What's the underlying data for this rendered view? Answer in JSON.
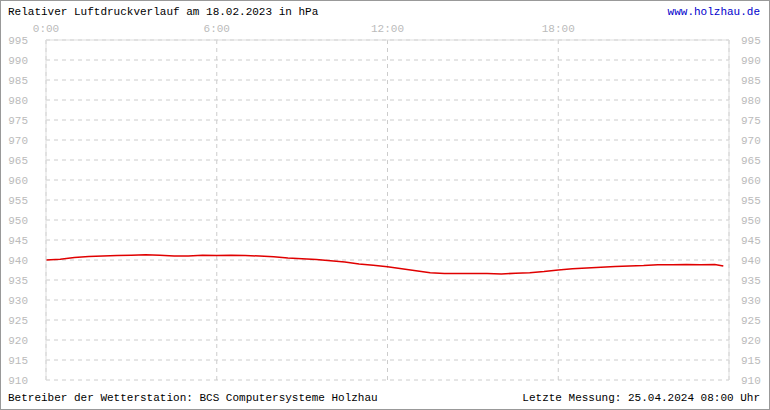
{
  "chart_data": {
    "type": "line",
    "title": "Relativer Luftdruckverlauf am 18.02.2023 in hPa",
    "annotations": [
      "www.holzhau.de",
      "Betreiber der Wetterstation: BCS Computersysteme Holzhau",
      "Letzte Messung: 25.04.2024 08:00 Uhr"
    ],
    "x": [
      0,
      0.5,
      1,
      1.5,
      2,
      2.5,
      3,
      3.5,
      4,
      4.5,
      5,
      5.5,
      6,
      6.5,
      7,
      7.5,
      8,
      8.5,
      9,
      9.5,
      10,
      10.5,
      11,
      11.5,
      12,
      12.5,
      13,
      13.5,
      14,
      14.5,
      15,
      15.5,
      16,
      16.5,
      17,
      17.5,
      18,
      18.5,
      19,
      19.5,
      20,
      20.5,
      21,
      21.5,
      22,
      22.5,
      23,
      23.5,
      23.8
    ],
    "series": [
      {
        "name": "Luftdruck",
        "color": "#e00000",
        "values": [
          940.0,
          940.2,
          940.6,
          940.9,
          941.0,
          941.1,
          941.2,
          941.3,
          941.2,
          941.0,
          941.0,
          941.2,
          941.1,
          941.2,
          941.1,
          941.0,
          940.8,
          940.5,
          940.3,
          940.1,
          939.8,
          939.5,
          939.0,
          938.7,
          938.3,
          937.8,
          937.3,
          936.8,
          936.6,
          936.6,
          936.6,
          936.6,
          936.5,
          936.7,
          936.8,
          937.1,
          937.5,
          937.8,
          938.0,
          938.2,
          938.4,
          938.5,
          938.6,
          938.8,
          938.8,
          938.9,
          938.8,
          938.9,
          938.5
        ]
      }
    ],
    "xlim": [
      0,
      24
    ],
    "xticks": [
      {
        "value": 0,
        "label": "0:00"
      },
      {
        "value": 6,
        "label": "6:00"
      },
      {
        "value": 12,
        "label": "12:00"
      },
      {
        "value": 18,
        "label": "18:00"
      }
    ],
    "ylim": [
      910,
      995
    ],
    "yticks": [
      910,
      915,
      920,
      925,
      930,
      935,
      940,
      945,
      950,
      955,
      960,
      965,
      970,
      975,
      980,
      985,
      990,
      995
    ],
    "grid": true,
    "legend": "none"
  }
}
